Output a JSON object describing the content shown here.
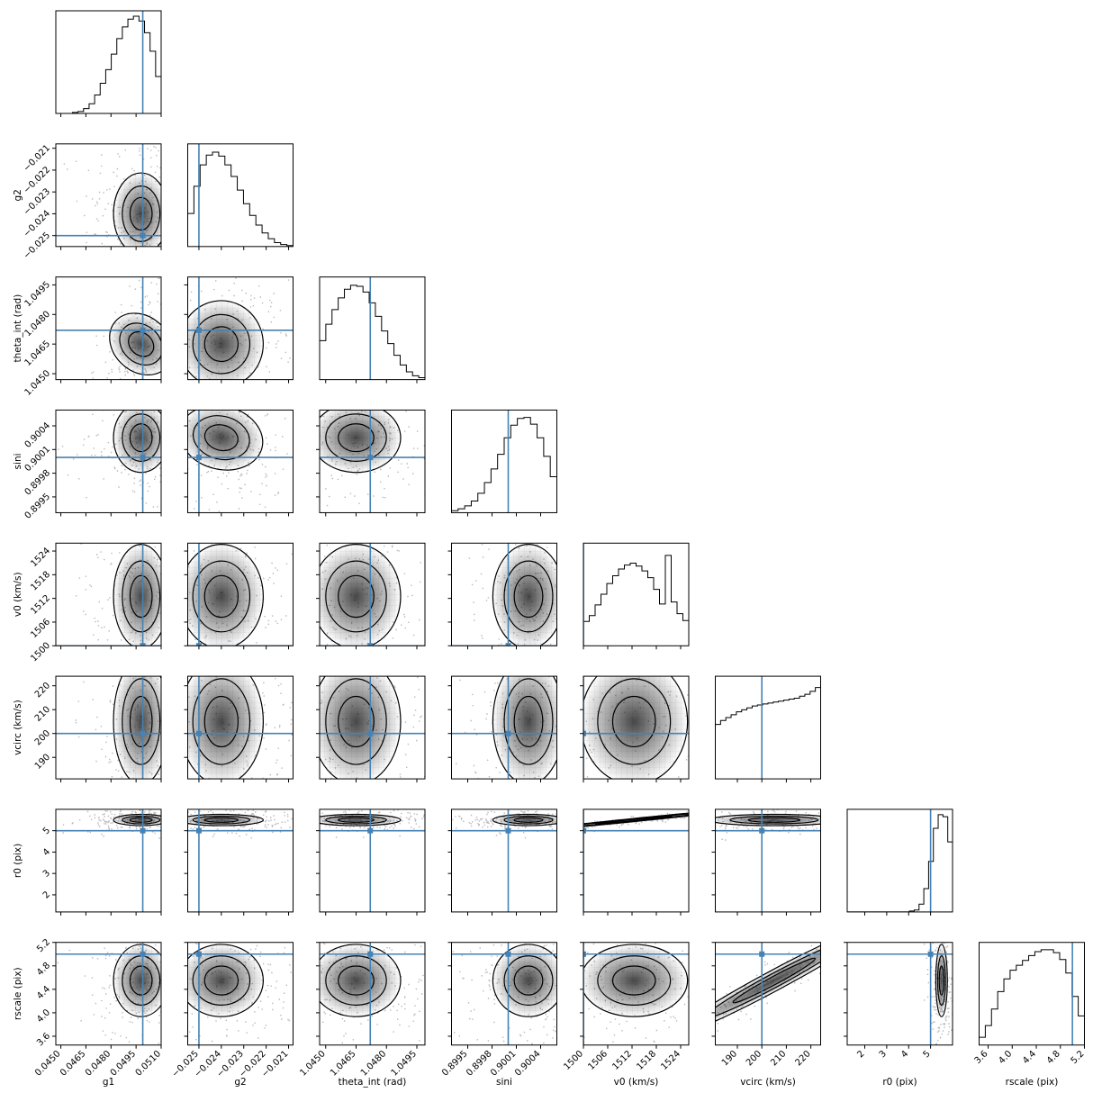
{
  "chart_data": {
    "type": "corner",
    "params": [
      {
        "name": "g1",
        "label": "g1",
        "range": [
          0.0447,
          0.051
        ],
        "truth": 0.0499,
        "ticks": [
          0.045,
          0.0465,
          0.048,
          0.0495,
          0.051
        ],
        "tick_labels": [
          "0.0450",
          "0.0465",
          "0.0480",
          "0.0495",
          "0.0510"
        ],
        "mean": 0.0498,
        "sd": 0.00075
      },
      {
        "name": "g2",
        "label": "g2",
        "range": [
          -0.0255,
          -0.0208
        ],
        "truth": -0.025,
        "ticks": [
          -0.025,
          -0.024,
          -0.023,
          -0.022,
          -0.021
        ],
        "tick_labels": [
          "−0.025",
          "−0.024",
          "−0.023",
          "−0.022",
          "−0.021"
        ],
        "mean": -0.024,
        "sd": 0.00085
      },
      {
        "name": "theta_int",
        "label": "theta_int (rad)",
        "range": [
          1.0447,
          1.0499
        ],
        "truth": 1.0472,
        "ticks": [
          1.045,
          1.0465,
          1.048,
          1.0495
        ],
        "tick_labels": [
          "1.0450",
          "1.0465",
          "1.0480",
          "1.0495"
        ],
        "mean": 1.0465,
        "sd": 0.001
      },
      {
        "name": "sini",
        "label": "sini",
        "range": [
          0.8993,
          0.9006
        ],
        "truth": 0.9,
        "ticks": [
          0.8995,
          0.8998,
          0.9001,
          0.9004
        ],
        "tick_labels": [
          "0.8995",
          "0.8998",
          "0.9001",
          "0.9004"
        ],
        "mean": 0.90025,
        "sd": 0.0002
      },
      {
        "name": "v0",
        "label": "v0 (km/s)",
        "range": [
          1500,
          1526
        ],
        "truth": 1500,
        "ticks": [
          1500,
          1506,
          1512,
          1518,
          1524
        ],
        "tick_labels": [
          "1500",
          "1506",
          "1512",
          "1518",
          "1524"
        ],
        "mean": 1512.5,
        "sd": 6.0
      },
      {
        "name": "vcirc",
        "label": "vcirc (km/s)",
        "range": [
          181,
          224
        ],
        "truth": 200,
        "ticks": [
          190,
          200,
          210,
          220
        ],
        "tick_labels": [
          "190",
          "200",
          "210",
          "220"
        ],
        "mean": 205,
        "sd": 12
      },
      {
        "name": "r0",
        "label": "r0 (pix)",
        "range": [
          1.2,
          6.0
        ],
        "truth": 5.0,
        "ticks": [
          2,
          3,
          4,
          5
        ],
        "tick_labels": [
          "2",
          "3",
          "4",
          "5"
        ],
        "mean": 5.5,
        "sd": 0.12
      },
      {
        "name": "rscale",
        "label": "rscale (pix)",
        "range": [
          3.45,
          5.2
        ],
        "truth": 5.0,
        "ticks": [
          3.6,
          4.0,
          4.4,
          4.8,
          5.2
        ],
        "tick_labels": [
          "3.6",
          "4.0",
          "4.4",
          "4.8",
          "5.2"
        ],
        "mean": 4.55,
        "sd": 0.28
      }
    ],
    "hist_shapes": [
      [
        0,
        0,
        0,
        0.01,
        0.02,
        0.05,
        0.1,
        0.19,
        0.31,
        0.45,
        0.61,
        0.77,
        0.89,
        0.97,
        1.0,
        0.95,
        0.83,
        0.64,
        0.38
      ],
      [
        0.34,
        0.62,
        0.84,
        0.94,
        0.97,
        0.93,
        0.84,
        0.72,
        0.58,
        0.44,
        0.32,
        0.22,
        0.14,
        0.08,
        0.04,
        0.02,
        0.01
      ],
      [
        0.4,
        0.57,
        0.72,
        0.84,
        0.93,
        0.97,
        0.96,
        0.9,
        0.79,
        0.65,
        0.5,
        0.37,
        0.25,
        0.15,
        0.08,
        0.04,
        0.02
      ],
      [
        0.02,
        0.04,
        0.07,
        0.12,
        0.2,
        0.31,
        0.45,
        0.6,
        0.77,
        0.9,
        0.97,
        0.98,
        0.91,
        0.77,
        0.58,
        0.37
      ],
      [
        0.25,
        0.31,
        0.42,
        0.53,
        0.64,
        0.72,
        0.79,
        0.83,
        0.85,
        0.82,
        0.77,
        0.7,
        0.58,
        0.43,
        0.93,
        0.45,
        0.33,
        0.26
      ],
      [
        0.56,
        0.6,
        0.63,
        0.66,
        0.69,
        0.71,
        0.73,
        0.75,
        0.76,
        0.77,
        0.78,
        0.79,
        0.8,
        0.81,
        0.82,
        0.83,
        0.85,
        0.87,
        0.9,
        0.94
      ],
      [
        0,
        0,
        0,
        0,
        0,
        0,
        0,
        0,
        0,
        0,
        0,
        0,
        0,
        0.01,
        0.02,
        0.08,
        0.24,
        0.52,
        0.86,
        1.0,
        0.98,
        0.72
      ],
      [
        0.08,
        0.2,
        0.37,
        0.55,
        0.68,
        0.77,
        0.82,
        0.87,
        0.92,
        0.96,
        0.98,
        0.98,
        0.95,
        0.88,
        0.74,
        0.5,
        0.3
      ]
    ],
    "truth_color": "#4682b4",
    "grid": false
  }
}
